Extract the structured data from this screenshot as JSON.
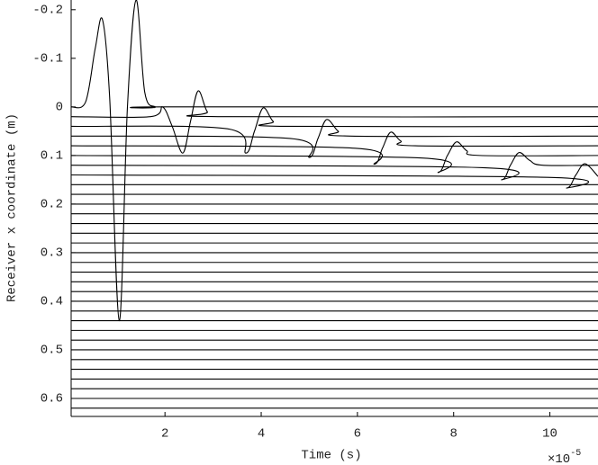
{
  "chart_data": {
    "type": "wiggle",
    "xlabel": "Time (s)",
    "ylabel": "Receiver x coordinate (m)",
    "x_scale_label": "×10",
    "x_scale_exponent": "-5",
    "color": "#000000",
    "xlim": [
      0.05,
      11
    ],
    "ylim": [
      -0.22,
      0.637
    ],
    "y_inverted": true,
    "xticks": [
      2,
      4,
      6,
      8,
      10
    ],
    "yticks": [
      -0.2,
      -0.1,
      0,
      0.1,
      0.2,
      0.3,
      0.4,
      0.5,
      0.6
    ],
    "series": [
      {
        "x": [
          0.05,
          0.35,
          0.55,
          0.7,
          0.85,
          1.05,
          1.22,
          1.4,
          1.58,
          1.8,
          2.0,
          11
        ],
        "values": [
          0,
          -0.01,
          -0.12,
          -0.18,
          -0.02,
          0.44,
          0.0,
          -0.22,
          -0.03,
          0.0,
          0.0,
          0
        ]
      },
      {
        "x": [
          0.05,
          1.7,
          1.95,
          2.15,
          2.37,
          2.53,
          2.69,
          2.88,
          3.1,
          11
        ],
        "values": [
          0.02,
          0.02,
          0.0,
          0.04,
          0.095,
          0.03,
          -0.033,
          0.01,
          0.02,
          0.02
        ]
      },
      {
        "x": [
          0.05,
          3.3,
          3.68,
          3.86,
          4.04,
          4.25,
          4.5,
          11
        ],
        "values": [
          0.04,
          0.045,
          0.095,
          0.05,
          0.002,
          0.03,
          0.04,
          0.04
        ]
      },
      {
        "x": [
          0.05,
          4.6,
          5.0,
          5.18,
          5.36,
          5.6,
          5.85,
          11
        ],
        "values": [
          0.06,
          0.065,
          0.104,
          0.065,
          0.026,
          0.05,
          0.06,
          0.06
        ]
      },
      {
        "x": [
          0.05,
          5.95,
          6.35,
          6.52,
          6.69,
          6.9,
          7.2,
          11
        ],
        "values": [
          0.08,
          0.085,
          0.118,
          0.085,
          0.052,
          0.07,
          0.08,
          0.08
        ]
      },
      {
        "x": [
          0.05,
          7.3,
          7.68,
          7.87,
          8.06,
          8.27,
          8.55,
          11
        ],
        "values": [
          0.1,
          0.105,
          0.135,
          0.1,
          0.072,
          0.09,
          0.1,
          0.1
        ]
      },
      {
        "x": [
          0.05,
          8.6,
          9.0,
          9.18,
          9.36,
          9.58,
          9.85,
          11
        ],
        "values": [
          0.12,
          0.125,
          0.15,
          0.12,
          0.094,
          0.11,
          0.12,
          0.12
        ]
      },
      {
        "x": [
          0.05,
          9.95,
          10.35,
          10.54,
          10.73,
          11
        ],
        "values": [
          0.14,
          0.145,
          0.167,
          0.14,
          0.117,
          0.143
        ]
      },
      {
        "x": [
          0.05,
          11
        ],
        "values": [
          0.16,
          0.16
        ]
      },
      {
        "x": [
          0.05,
          11
        ],
        "values": [
          0.18,
          0.18
        ]
      },
      {
        "x": [
          0.05,
          11
        ],
        "values": [
          0.2,
          0.2
        ]
      },
      {
        "x": [
          0.05,
          11
        ],
        "values": [
          0.22,
          0.22
        ]
      },
      {
        "x": [
          0.05,
          11
        ],
        "values": [
          0.24,
          0.24
        ]
      },
      {
        "x": [
          0.05,
          11
        ],
        "values": [
          0.26,
          0.26
        ]
      },
      {
        "x": [
          0.05,
          11
        ],
        "values": [
          0.28,
          0.28
        ]
      },
      {
        "x": [
          0.05,
          11
        ],
        "values": [
          0.3,
          0.3
        ]
      },
      {
        "x": [
          0.05,
          11
        ],
        "values": [
          0.32,
          0.32
        ]
      },
      {
        "x": [
          0.05,
          11
        ],
        "values": [
          0.34,
          0.34
        ]
      },
      {
        "x": [
          0.05,
          11
        ],
        "values": [
          0.36,
          0.36
        ]
      },
      {
        "x": [
          0.05,
          11
        ],
        "values": [
          0.38,
          0.38
        ]
      },
      {
        "x": [
          0.05,
          11
        ],
        "values": [
          0.4,
          0.4
        ]
      },
      {
        "x": [
          0.05,
          11
        ],
        "values": [
          0.42,
          0.42
        ]
      },
      {
        "x": [
          0.05,
          11
        ],
        "values": [
          0.44,
          0.44
        ]
      },
      {
        "x": [
          0.05,
          11
        ],
        "values": [
          0.46,
          0.46
        ]
      },
      {
        "x": [
          0.05,
          11
        ],
        "values": [
          0.48,
          0.48
        ]
      },
      {
        "x": [
          0.05,
          11
        ],
        "values": [
          0.5,
          0.5
        ]
      },
      {
        "x": [
          0.05,
          11
        ],
        "values": [
          0.52,
          0.52
        ]
      },
      {
        "x": [
          0.05,
          11
        ],
        "values": [
          0.54,
          0.54
        ]
      },
      {
        "x": [
          0.05,
          11
        ],
        "values": [
          0.56,
          0.56
        ]
      },
      {
        "x": [
          0.05,
          11
        ],
        "values": [
          0.58,
          0.58
        ]
      },
      {
        "x": [
          0.05,
          11
        ],
        "values": [
          0.6,
          0.6
        ]
      },
      {
        "x": [
          0.05,
          11
        ],
        "values": [
          0.62,
          0.62
        ]
      }
    ]
  }
}
